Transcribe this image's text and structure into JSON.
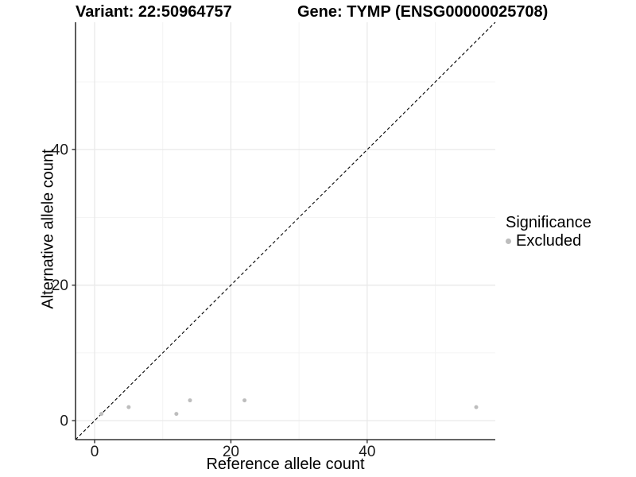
{
  "titles": {
    "variant": "Variant: 22:50964757",
    "gene": "Gene: TYMP (ENSG00000025708)"
  },
  "legend": {
    "title": "Significance",
    "items": [
      {
        "label": "Excluded",
        "color": "#bdbdbd"
      }
    ]
  },
  "colors": {
    "background": "#ffffff",
    "point": "#bdbdbd",
    "identity_line": "#000000",
    "axis_line": "#333333",
    "tick_mark": "#333333",
    "tick_label": "#1a1a1a",
    "grid_major": "#e9e9e9",
    "grid_minor": "#f4f4f4"
  },
  "chart_data": {
    "type": "scatter",
    "title_left": "Variant: 22:50964757",
    "title_right": "Gene: TYMP (ENSG00000025708)",
    "xlabel": "Reference allele count",
    "ylabel": "Alternative allele count",
    "xlim": [
      -2.8,
      58.8
    ],
    "ylim": [
      -2.8,
      58.8
    ],
    "x_ticks": [
      0,
      20,
      40
    ],
    "y_ticks": [
      0,
      20,
      40
    ],
    "x_tick_labels": [
      "0",
      "20",
      "40"
    ],
    "y_tick_labels": [
      "0",
      "20",
      "40"
    ],
    "x_minor_ticks": [
      10,
      30,
      50
    ],
    "y_minor_ticks": [
      10,
      30,
      50
    ],
    "grid": true,
    "legend_position": "right",
    "legend_title": "Significance",
    "identity_line": {
      "style": "dashed",
      "equation": "y = x",
      "from": [
        -2.8,
        -2.8
      ],
      "to": [
        58.8,
        58.8
      ]
    },
    "series": [
      {
        "name": "Excluded",
        "color": "#bdbdbd",
        "points": [
          {
            "x": 1,
            "y": 1
          },
          {
            "x": 5,
            "y": 2
          },
          {
            "x": 12,
            "y": 1
          },
          {
            "x": 14,
            "y": 3
          },
          {
            "x": 22,
            "y": 3
          },
          {
            "x": 56,
            "y": 2
          }
        ]
      }
    ]
  }
}
